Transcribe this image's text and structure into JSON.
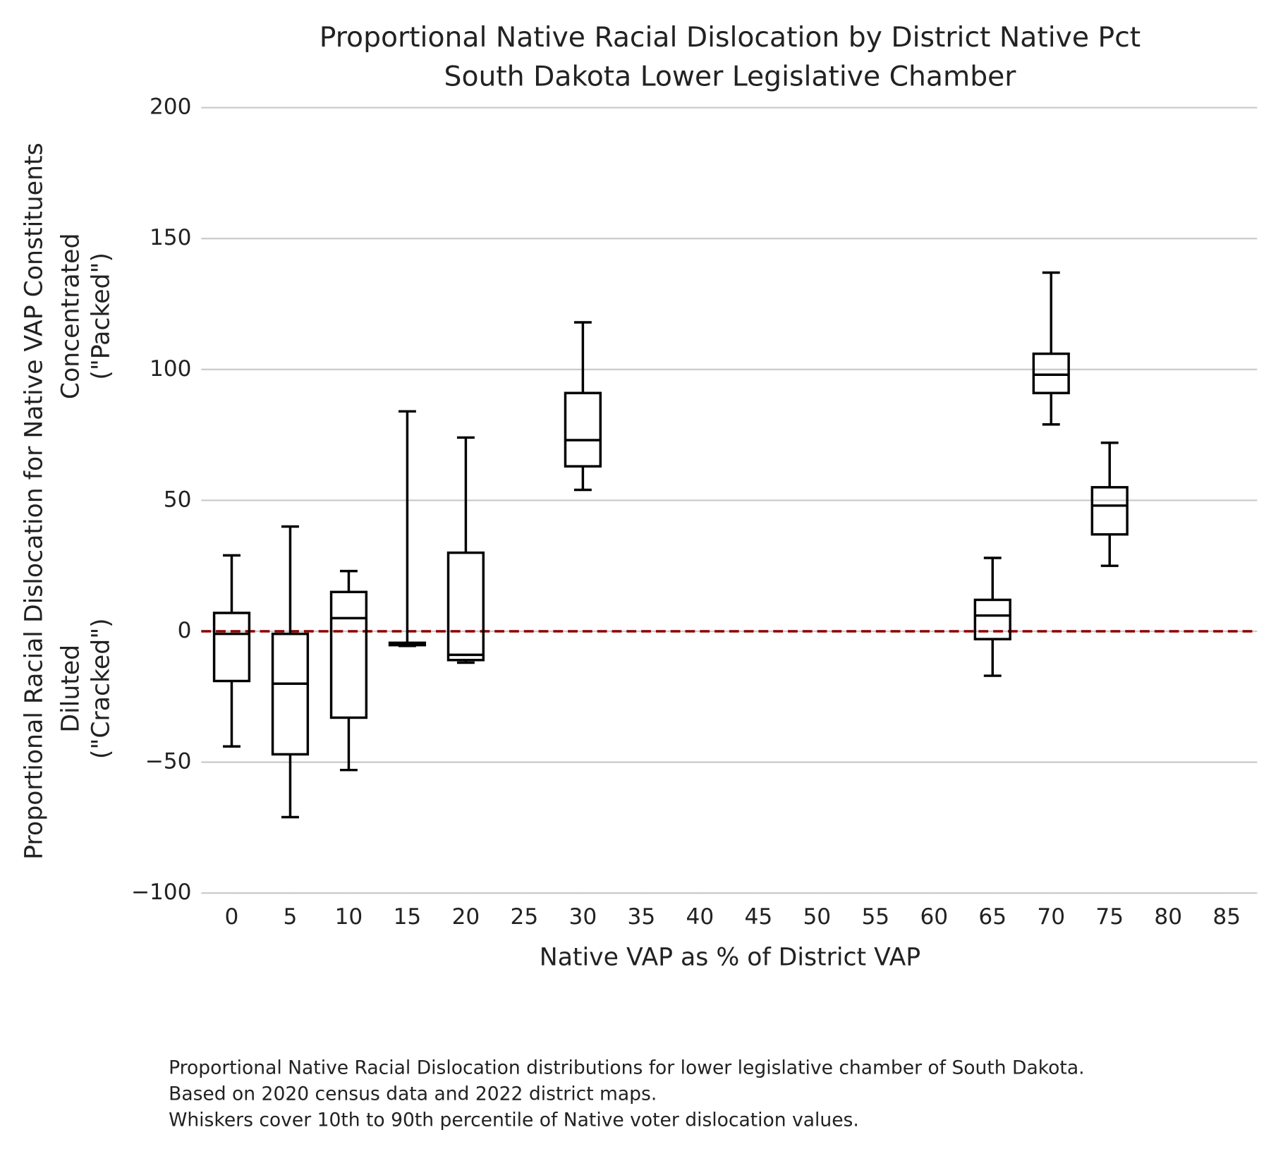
{
  "chart_data": {
    "type": "box",
    "title": [
      "Proportional Native Racial Dislocation by District Native Pct",
      "South Dakota Lower Legislative Chamber"
    ],
    "xlabel": "Native VAP as % of District VAP",
    "ylabel": "Proportional Racial Dislocation for Native VAP Constituents",
    "upper_label": [
      "Concentrated",
      "(\"Packed\")"
    ],
    "lower_label": [
      "Diluted",
      "(\"Cracked\")"
    ],
    "caption": [
      "Proportional Native Racial Dislocation distributions for lower legislative chamber of South Dakota.",
      "Based on 2020 census data and 2022 district maps.",
      "Whiskers cover 10th to 90th percentile of Native voter dislocation values."
    ],
    "x": [
      0,
      5,
      10,
      15,
      20,
      30,
      65,
      70,
      75
    ],
    "boxes": [
      {
        "whislo": -44,
        "q1": -19,
        "med": -1,
        "q3": 7,
        "whishi": 29
      },
      {
        "whislo": -71,
        "q1": -47,
        "med": -20,
        "q3": -1,
        "whishi": 40
      },
      {
        "whislo": -53,
        "q1": -33,
        "med": 5,
        "q3": 15,
        "whishi": 23
      },
      {
        "whislo": -5.6,
        "q1": -5.3,
        "med": -4.8,
        "q3": -4.4,
        "whishi": 84
      },
      {
        "whislo": -12,
        "q1": -11,
        "med": -9,
        "q3": 30,
        "whishi": 74
      },
      {
        "whislo": 54,
        "q1": 63,
        "med": 73,
        "q3": 91,
        "whishi": 118
      },
      {
        "whislo": -17,
        "q1": -3,
        "med": 6,
        "q3": 12,
        "whishi": 28
      },
      {
        "whislo": 79,
        "q1": 91,
        "med": 98,
        "q3": 106,
        "whishi": 137
      },
      {
        "whislo": 25,
        "q1": 37,
        "med": 48,
        "q3": 55,
        "whishi": 72
      }
    ],
    "box_width": 3,
    "color": "#000000",
    "reference_line": {
      "y": 0,
      "color": "#8b0000"
    },
    "xlim": [
      -2.6,
      87.6
    ],
    "ylim": [
      -100,
      200
    ],
    "xticks": [
      0,
      5,
      10,
      15,
      20,
      25,
      30,
      35,
      40,
      45,
      50,
      55,
      60,
      65,
      70,
      75,
      80,
      85
    ],
    "yticks": [
      {
        "value": -100,
        "label": "−100"
      },
      {
        "value": -50,
        "label": "−50"
      },
      0,
      50,
      100,
      150,
      200
    ],
    "grid": true
  }
}
